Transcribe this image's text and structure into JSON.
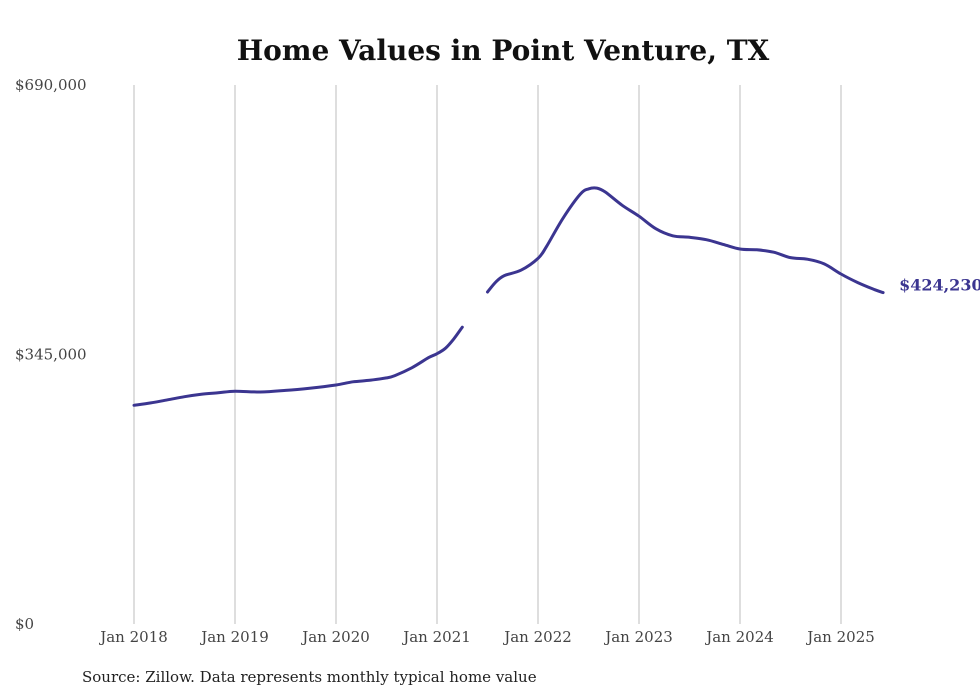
{
  "chart_data": {
    "type": "line",
    "title": "Home Values in Point Venture, TX",
    "xlabel": "",
    "ylabel": "",
    "ylim": [
      0,
      690000
    ],
    "yticks": [
      "$0",
      "$345,000",
      "$690,000"
    ],
    "ytick_values": [
      0,
      345000,
      690000
    ],
    "xticks": [
      "Jan 2018",
      "Jan 2019",
      "Jan 2020",
      "Jan 2021",
      "Jan 2022",
      "Jan 2023",
      "Jan 2024",
      "Jan 2025"
    ],
    "xtick_values": [
      "2018-01",
      "2019-01",
      "2020-01",
      "2021-01",
      "2022-01",
      "2023-01",
      "2024-01",
      "2025-01"
    ],
    "grid": "vertical",
    "line_color": "#3b3590",
    "end_label": "$424,230",
    "series": [
      {
        "values": [
          {
            "x": "2018-01",
            "y": 280000
          },
          {
            "x": "2018-03",
            "y": 283000
          },
          {
            "x": "2018-05",
            "y": 287000
          },
          {
            "x": "2018-07",
            "y": 291000
          },
          {
            "x": "2018-09",
            "y": 294000
          },
          {
            "x": "2018-11",
            "y": 296000
          },
          {
            "x": "2019-01",
            "y": 298000
          },
          {
            "x": "2019-04",
            "y": 297000
          },
          {
            "x": "2019-07",
            "y": 299000
          },
          {
            "x": "2019-10",
            "y": 302000
          },
          {
            "x": "2020-01",
            "y": 306000
          },
          {
            "x": "2020-03",
            "y": 310000
          },
          {
            "x": "2020-05",
            "y": 312000
          },
          {
            "x": "2020-07",
            "y": 315000
          },
          {
            "x": "2020-08",
            "y": 318000
          },
          {
            "x": "2020-10",
            "y": 328000
          },
          {
            "x": "2020-12",
            "y": 341000
          },
          {
            "x": "2021-01",
            "y": 346000
          },
          {
            "x": "2021-02",
            "y": 353000
          },
          {
            "x": "2021-03",
            "y": 365000
          },
          {
            "x": "2021-04",
            "y": 380000
          },
          {
            "x": "2021-06",
            "y": null
          },
          {
            "x": "2021-07",
            "y": 425000
          },
          {
            "x": "2021-08",
            "y": 438000
          },
          {
            "x": "2021-09",
            "y": 446000
          },
          {
            "x": "2021-11",
            "y": 453000
          },
          {
            "x": "2022-01",
            "y": 468000
          },
          {
            "x": "2022-02",
            "y": 483000
          },
          {
            "x": "2022-04",
            "y": 520000
          },
          {
            "x": "2022-06",
            "y": 550000
          },
          {
            "x": "2022-07",
            "y": 557000
          },
          {
            "x": "2022-08",
            "y": 558000
          },
          {
            "x": "2022-09",
            "y": 553000
          },
          {
            "x": "2022-11",
            "y": 536000
          },
          {
            "x": "2023-01",
            "y": 522000
          },
          {
            "x": "2023-03",
            "y": 506000
          },
          {
            "x": "2023-05",
            "y": 497000
          },
          {
            "x": "2023-07",
            "y": 495000
          },
          {
            "x": "2023-09",
            "y": 492000
          },
          {
            "x": "2023-11",
            "y": 486000
          },
          {
            "x": "2024-01",
            "y": 480000
          },
          {
            "x": "2024-03",
            "y": 479000
          },
          {
            "x": "2024-05",
            "y": 476000
          },
          {
            "x": "2024-07",
            "y": 469000
          },
          {
            "x": "2024-09",
            "y": 467000
          },
          {
            "x": "2024-11",
            "y": 461000
          },
          {
            "x": "2025-01",
            "y": 448000
          },
          {
            "x": "2025-03",
            "y": 437000
          },
          {
            "x": "2025-05",
            "y": 428000
          },
          {
            "x": "2025-06",
            "y": 424230
          }
        ]
      }
    ]
  },
  "footer": {
    "source": "Source: Zillow. Data represents monthly typical home value"
  }
}
